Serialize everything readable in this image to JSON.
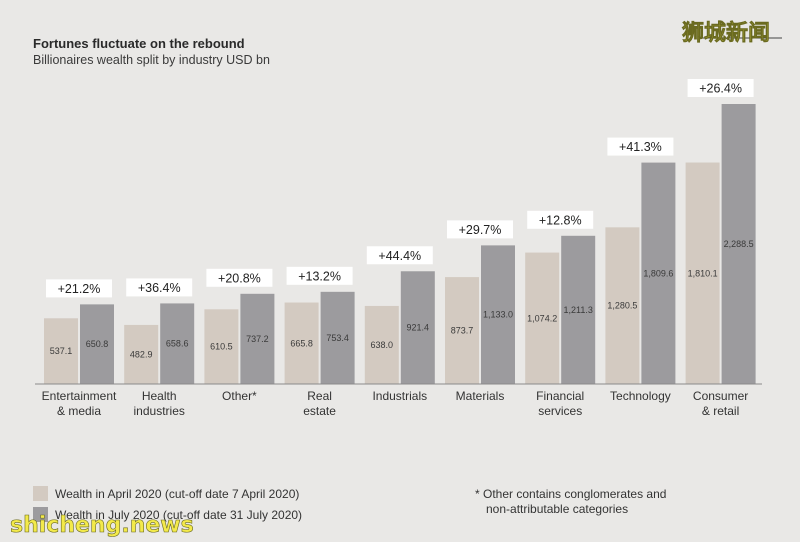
{
  "watermark": {
    "top_right": "狮城新闻",
    "bottom_left": "shicheng.news"
  },
  "footnote": {
    "line1": "* Other contains conglomerates and",
    "line2": "non-attributable categories"
  },
  "colors": {
    "background": "#e9e8e6",
    "april": "#d3cac1",
    "july": "#9c9b9e",
    "axis": "#8a8a8a"
  },
  "chart_data": {
    "type": "bar",
    "title": "Fortunes fluctuate on the rebound",
    "subtitle": "Billionaires wealth split by industry USD bn",
    "categories": [
      [
        "Entertainment",
        "& media"
      ],
      [
        "Health",
        "industries"
      ],
      [
        "Other*"
      ],
      [
        "Real",
        "estate"
      ],
      [
        "Industrials"
      ],
      [
        "Materials"
      ],
      [
        "Financial",
        "services"
      ],
      [
        "Technology"
      ],
      [
        "Consumer",
        "& retail"
      ]
    ],
    "series": [
      {
        "name": "Wealth in April 2020 (cut-off date 7 April 2020)",
        "values": [
          537.1,
          482.9,
          610.5,
          665.8,
          638.0,
          873.7,
          1074.2,
          1280.5,
          1810.1
        ],
        "labels": [
          "537.1",
          "482.9",
          "610.5",
          "665.8",
          "638.0",
          "873.7",
          "1,074.2",
          "1,280.5",
          "1,810.1"
        ]
      },
      {
        "name": "Wealth in July 2020 (cut-off date 31 July 2020)",
        "values": [
          650.8,
          658.6,
          737.2,
          753.4,
          921.4,
          1133.0,
          1211.3,
          1809.6,
          2288.5
        ],
        "labels": [
          "650.8",
          "658.6",
          "737.2",
          "753.4",
          "921.4",
          "1,133.0",
          "1,211.3",
          "1,809.6",
          "2,288.5"
        ]
      }
    ],
    "changes": [
      "+21.2%",
      "+36.4%",
      "+20.8%",
      "+13.2%",
      "+44.4%",
      "+29.7%",
      "+12.8%",
      "+41.3%",
      "+26.4%"
    ],
    "ylim": [
      0,
      2288.5
    ],
    "grid": false,
    "legend_position": "bottom-left"
  }
}
